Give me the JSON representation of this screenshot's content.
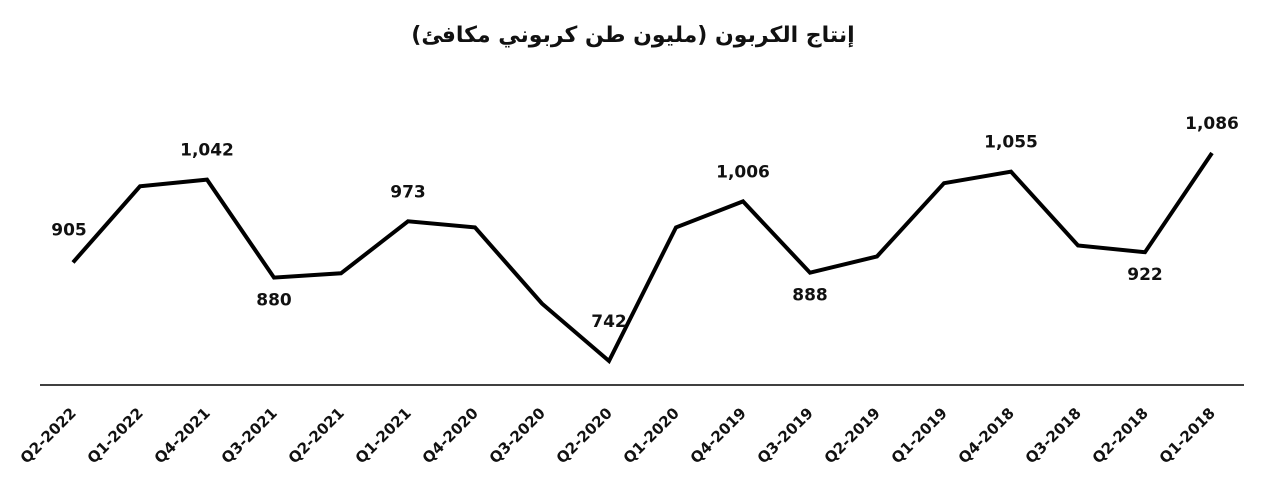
{
  "chart_data": {
    "type": "line",
    "title": "إنتاج الكربون (مليون طن كربوني مكافئ)",
    "categories": [
      "Q2-2022",
      "Q1-2022",
      "Q4-2021",
      "Q3-2021",
      "Q2-2021",
      "Q1-2021",
      "Q4-2020",
      "Q3-2020",
      "Q2-2020",
      "Q1-2020",
      "Q4-2019",
      "Q3-2019",
      "Q2-2019",
      "Q1-2019",
      "Q4-2018",
      "Q3-2018",
      "Q2-2018",
      "Q1-2018"
    ],
    "values": [
      905,
      1031,
      1042,
      880,
      887,
      973,
      963,
      837,
      742,
      963,
      1006,
      888,
      915,
      1036,
      1055,
      933,
      922,
      1086
    ],
    "value_labels": [
      "905",
      null,
      "1,042",
      "880",
      null,
      "973",
      null,
      null,
      "742",
      null,
      "1,006",
      "888",
      null,
      null,
      "1,055",
      null,
      "922",
      "1,086"
    ],
    "color": "#000000"
  }
}
